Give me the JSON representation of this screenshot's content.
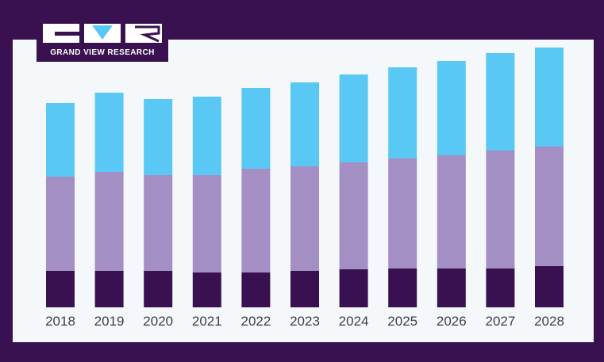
{
  "logo": {
    "brand_text": "GRAND VIEW RESEARCH",
    "icon": "gvr-logo-mark"
  },
  "colors": {
    "background": "#3a1150",
    "panel": "#f4f8fb",
    "series": [
      "#3a1150",
      "#a48fc4",
      "#5ac8f5"
    ]
  },
  "chart_data": {
    "type": "bar",
    "stacked": true,
    "title": "",
    "xlabel": "",
    "ylabel": "",
    "legend": false,
    "grid": false,
    "categories": [
      "2018",
      "2019",
      "2020",
      "2021",
      "2022",
      "2023",
      "2024",
      "2025",
      "2026",
      "2027",
      "2028"
    ],
    "series": [
      {
        "values": [
          46,
          46,
          46,
          44,
          44,
          46,
          48,
          49,
          49,
          49,
          52
        ]
      },
      {
        "values": [
          119,
          125,
          121,
          123,
          131,
          132,
          135,
          139,
          143,
          149,
          151
        ]
      },
      {
        "values": [
          93,
          100,
          96,
          99,
          102,
          106,
          111,
          115,
          119,
          123,
          125
        ]
      }
    ],
    "ylim": [
      0,
      330
    ]
  }
}
